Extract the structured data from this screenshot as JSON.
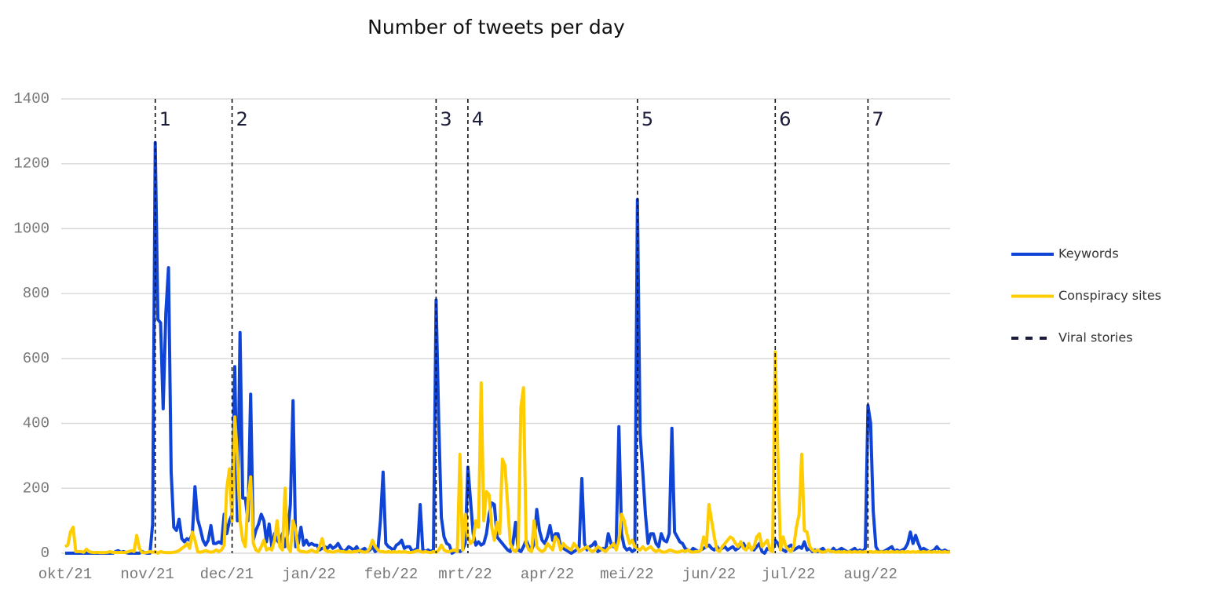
{
  "chart_data": {
    "type": "line",
    "title": "Number of tweets per day",
    "categories": [
      "okt/21",
      null,
      null,
      null,
      null,
      null,
      null,
      null,
      null,
      null,
      null,
      null,
      null,
      null,
      null,
      null,
      null,
      null,
      null,
      null,
      null,
      null,
      null,
      null,
      null,
      null,
      null,
      null,
      null,
      null,
      null,
      "nov/21",
      null,
      null,
      null,
      null,
      null,
      null,
      null,
      null,
      null,
      null,
      null,
      null,
      null,
      null,
      null,
      null,
      null,
      null,
      null,
      null,
      null,
      null,
      null,
      null,
      null,
      null,
      null,
      null,
      null,
      "dec/21",
      null,
      null,
      null,
      null,
      null,
      null,
      null,
      null,
      null,
      null,
      null,
      null,
      null,
      null,
      null,
      null,
      null,
      null,
      null,
      null,
      null,
      null,
      null,
      null,
      null,
      null,
      null,
      null,
      null,
      null,
      "jan/22",
      null,
      null,
      null,
      null,
      null,
      null,
      null,
      null,
      null,
      null,
      null,
      null,
      null,
      null,
      null,
      null,
      null,
      null,
      null,
      null,
      null,
      null,
      null,
      null,
      null,
      null,
      null,
      null,
      null,
      null,
      "feb/22",
      null,
      null,
      null,
      null,
      null,
      null,
      null,
      null,
      null,
      null,
      null,
      null,
      null,
      null,
      null,
      null,
      null,
      null,
      null,
      null,
      null,
      null,
      null,
      null,
      null,
      null,
      null,
      "mrt/22",
      null,
      null,
      null,
      null,
      null,
      null,
      null,
      null,
      null,
      null,
      null,
      null,
      null,
      null,
      null,
      null,
      null,
      null,
      null,
      null,
      null,
      null,
      null,
      null,
      null,
      null,
      null,
      null,
      null,
      null,
      "apr/22",
      null,
      null,
      null,
      null,
      null,
      null,
      null,
      null,
      null,
      null,
      null,
      null,
      null,
      null,
      null,
      null,
      null,
      null,
      null,
      null,
      null,
      null,
      null,
      null,
      null,
      null,
      null,
      null,
      null,
      "mei/22",
      null,
      null,
      null,
      null,
      null,
      null,
      null,
      null,
      null,
      null,
      null,
      null,
      null,
      null,
      null,
      null,
      null,
      null,
      null,
      null,
      null,
      null,
      null,
      null,
      null,
      null,
      null,
      null,
      null,
      null,
      "jun/22",
      null,
      null,
      null,
      null,
      null,
      null,
      null,
      null,
      null,
      null,
      null,
      null,
      null,
      null,
      null,
      null,
      null,
      null,
      null,
      null,
      null,
      null,
      null,
      null,
      null,
      null,
      null,
      null,
      null,
      "jul/22",
      null,
      null,
      null,
      null,
      null,
      null,
      null,
      null,
      null,
      null,
      null,
      null,
      null,
      null,
      null,
      null,
      null,
      null,
      null,
      null,
      null,
      null,
      null,
      null,
      null,
      null,
      null,
      null,
      null,
      null,
      "aug/22",
      null,
      null,
      null,
      null,
      null,
      null,
      null,
      null,
      null,
      null,
      null,
      null,
      null,
      null,
      null,
      null,
      null,
      null,
      null,
      null,
      null,
      null,
      null,
      null,
      null,
      null,
      null,
      null,
      null,
      null
    ],
    "series": [
      {
        "name": "Keywords",
        "color": "#0f44d6",
        "values": [
          0,
          0,
          0,
          0,
          0,
          0,
          0,
          0,
          0,
          0,
          0,
          0,
          0,
          0,
          0,
          0,
          0,
          0,
          0,
          5,
          8,
          3,
          5,
          2,
          0,
          0,
          0,
          0,
          0,
          5,
          2,
          0,
          0,
          90,
          1265,
          720,
          710,
          445,
          740,
          880,
          250,
          80,
          70,
          105,
          45,
          35,
          45,
          40,
          60,
          205,
          105,
          75,
          40,
          25,
          40,
          85,
          30,
          30,
          35,
          30,
          120,
          60,
          100,
          120,
          575,
          100,
          680,
          170,
          170,
          100,
          490,
          40,
          70,
          90,
          120,
          100,
          35,
          90,
          20,
          60,
          40,
          30,
          60,
          20,
          60,
          150,
          470,
          20,
          30,
          80,
          25,
          40,
          25,
          30,
          25,
          25,
          10,
          15,
          20,
          15,
          25,
          15,
          20,
          30,
          15,
          5,
          10,
          20,
          15,
          10,
          20,
          5,
          10,
          15,
          5,
          10,
          20,
          5,
          10,
          100,
          250,
          30,
          20,
          15,
          10,
          25,
          30,
          40,
          15,
          20,
          20,
          5,
          10,
          15,
          150,
          10,
          5,
          10,
          5,
          10,
          780,
          400,
          110,
          50,
          30,
          25,
          0,
          5,
          10,
          5,
          10,
          30,
          265,
          160,
          60,
          25,
          35,
          25,
          30,
          60,
          120,
          155,
          150,
          50,
          40,
          30,
          20,
          10,
          5,
          30,
          95,
          10,
          5,
          20,
          40,
          20,
          10,
          30,
          135,
          70,
          40,
          30,
          50,
          85,
          40,
          60,
          60,
          20,
          15,
          10,
          5,
          0,
          5,
          10,
          20,
          230,
          30,
          10,
          20,
          25,
          35,
          5,
          10,
          15,
          10,
          60,
          30,
          20,
          30,
          390,
          60,
          20,
          10,
          15,
          5,
          10,
          1090,
          370,
          250,
          120,
          30,
          60,
          60,
          30,
          20,
          60,
          40,
          35,
          60,
          385,
          65,
          50,
          35,
          30,
          15,
          10,
          5,
          15,
          10,
          5,
          10,
          15,
          20,
          25,
          15,
          10,
          20,
          10,
          15,
          20,
          10,
          15,
          20,
          10,
          15,
          25,
          30,
          15,
          20,
          15,
          10,
          20,
          30,
          5,
          0,
          15,
          10,
          10,
          40,
          30,
          15,
          10,
          5,
          20,
          25,
          10,
          15,
          20,
          15,
          35,
          10,
          15,
          5,
          10,
          5,
          10,
          15,
          5,
          10,
          5,
          15,
          5,
          10,
          15,
          10,
          5,
          5,
          10,
          15,
          5,
          10,
          5,
          15,
          455,
          400,
          130,
          20,
          5,
          5,
          5,
          10,
          15,
          20,
          5,
          10,
          5,
          10,
          15,
          30,
          65,
          30,
          55,
          30,
          10,
          15,
          10,
          5,
          5,
          10,
          20,
          10,
          5,
          10,
          5,
          5
        ]
      },
      {
        "name": "Conspiracy sites",
        "color": "#ffcc00",
        "values": [
          20,
          25,
          65,
          80,
          5,
          5,
          5,
          3,
          12,
          5,
          3,
          2,
          3,
          2,
          2,
          2,
          3,
          5,
          2,
          3,
          2,
          3,
          2,
          3,
          5,
          8,
          5,
          55,
          15,
          2,
          2,
          3,
          5,
          3,
          5,
          0,
          5,
          3,
          2,
          2,
          2,
          3,
          5,
          8,
          15,
          20,
          30,
          15,
          65,
          40,
          5,
          3,
          5,
          8,
          5,
          3,
          5,
          10,
          5,
          10,
          25,
          200,
          260,
          100,
          420,
          300,
          100,
          40,
          20,
          160,
          235,
          30,
          10,
          5,
          20,
          40,
          10,
          15,
          10,
          40,
          100,
          20,
          10,
          200,
          20,
          5,
          100,
          70,
          10,
          5,
          5,
          3,
          5,
          10,
          5,
          3,
          20,
          45,
          10,
          5,
          5,
          3,
          5,
          8,
          5,
          5,
          3,
          5,
          3,
          5,
          5,
          8,
          5,
          3,
          5,
          15,
          40,
          20,
          10,
          5,
          5,
          3,
          5,
          3,
          5,
          3,
          5,
          3,
          5,
          3,
          2,
          3,
          5,
          8,
          5,
          3,
          5,
          3,
          2,
          5,
          3,
          10,
          25,
          10,
          5,
          5,
          8,
          10,
          5,
          305,
          10,
          120,
          50,
          30,
          40,
          100,
          80,
          525,
          100,
          190,
          180,
          80,
          40,
          95,
          60,
          290,
          270,
          150,
          30,
          10,
          5,
          20,
          450,
          510,
          30,
          10,
          5,
          100,
          20,
          10,
          5,
          10,
          30,
          20,
          10,
          50,
          40,
          10,
          30,
          20,
          15,
          10,
          30,
          20,
          5,
          10,
          15,
          20,
          10,
          5,
          10,
          20,
          15,
          10,
          5,
          15,
          20,
          30,
          10,
          40,
          120,
          100,
          60,
          30,
          40,
          20,
          15,
          10,
          20,
          10,
          15,
          20,
          10,
          5,
          10,
          5,
          3,
          5,
          10,
          8,
          5,
          3,
          5,
          8,
          5,
          10,
          5,
          3,
          5,
          5,
          10,
          50,
          20,
          150,
          100,
          50,
          10,
          5,
          20,
          30,
          40,
          50,
          45,
          30,
          20,
          35,
          15,
          10,
          30,
          10,
          20,
          50,
          60,
          20,
          30,
          40,
          10,
          5,
          620,
          300,
          10,
          50,
          20,
          10,
          5,
          20,
          80,
          120,
          305,
          70,
          65,
          20,
          10,
          5,
          10,
          5,
          3,
          5,
          10,
          5,
          5,
          3,
          5,
          3,
          5,
          3,
          5,
          3,
          5,
          3,
          5,
          3,
          5,
          3,
          5,
          3,
          5,
          3,
          5,
          3,
          5,
          3,
          5,
          3,
          5,
          3,
          5,
          3,
          5,
          3,
          5,
          3,
          5,
          3,
          5,
          3,
          5,
          3,
          5,
          3,
          5,
          3,
          5,
          3,
          5
        ]
      }
    ],
    "viral_stories": {
      "name": "Viral stories",
      "color": "#1b1b3a",
      "items": [
        {
          "label": "1",
          "x": 34
        },
        {
          "label": "2",
          "x": 63
        },
        {
          "label": "3",
          "x": 140
        },
        {
          "label": "4",
          "x": 152
        },
        {
          "label": "5",
          "x": 216
        },
        {
          "label": "6",
          "x": 268
        },
        {
          "label": "7",
          "x": 303
        }
      ]
    },
    "ylim": [
      0,
      1400
    ],
    "yticks": [
      0,
      200,
      400,
      600,
      800,
      1000,
      1200,
      1400
    ],
    "grid": true,
    "legend": "right"
  }
}
